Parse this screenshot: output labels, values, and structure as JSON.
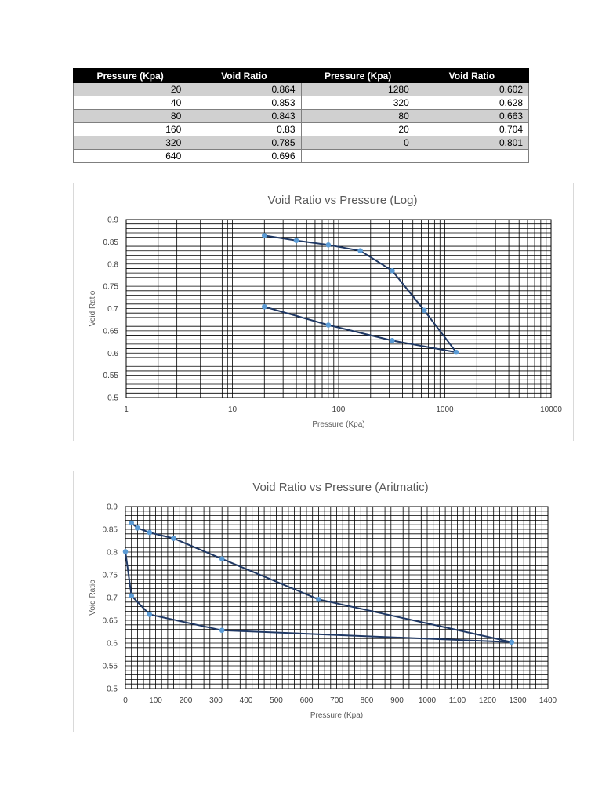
{
  "table": {
    "headers": [
      "Pressure (Kpa)",
      "Void Ratio",
      "Pressure (Kpa)",
      "Void Ratio"
    ],
    "rows": [
      [
        "20",
        "0.864",
        "1280",
        "0.602"
      ],
      [
        "40",
        "0.853",
        "320",
        "0.628"
      ],
      [
        "80",
        "0.843",
        "80",
        "0.663"
      ],
      [
        "160",
        "0.83",
        "20",
        "0.704"
      ],
      [
        "320",
        "0.785",
        "0",
        "0.801"
      ],
      [
        "640",
        "0.696",
        "",
        ""
      ]
    ]
  },
  "colors": {
    "line": "#1f3864",
    "marker": "#5b9bd5",
    "grid": "#000000",
    "table_header_bg": "#000000",
    "table_shade": "#d0d0d0"
  },
  "chart_data": [
    {
      "type": "line",
      "title": "Void Ratio vs Pressure (Log)",
      "xlabel": "Pressure (Kpa)",
      "ylabel": "Void Ratio",
      "x_scale": "log",
      "xlim": [
        1,
        10000
      ],
      "ylim": [
        0.5,
        0.9
      ],
      "x_ticks": [
        1,
        10,
        100,
        1000,
        10000
      ],
      "x_tick_labels": [
        "1",
        "10",
        "100",
        "1000",
        "10000"
      ],
      "y_ticks": [
        0.5,
        0.55,
        0.6,
        0.65,
        0.7,
        0.75,
        0.8,
        0.85,
        0.9
      ],
      "y_tick_labels": [
        "0.5",
        "0.55",
        "0.6",
        "0.65",
        "0.7",
        "0.75",
        "0.8",
        "0.85",
        "0.9"
      ],
      "grid": "major and minor",
      "series": [
        {
          "x": [
            20,
            40,
            80,
            160,
            320,
            640,
            1280,
            320,
            80,
            20
          ],
          "y": [
            0.864,
            0.853,
            0.843,
            0.83,
            0.785,
            0.696,
            0.602,
            0.628,
            0.663,
            0.704
          ]
        }
      ]
    },
    {
      "type": "line",
      "title": "Void Ratio vs Pressure (Aritmatic)",
      "xlabel": "Pressure (Kpa)",
      "ylabel": "Void Ratio",
      "x_scale": "linear",
      "xlim": [
        0,
        1400
      ],
      "ylim": [
        0.5,
        0.9
      ],
      "x_ticks": [
        0,
        100,
        200,
        300,
        400,
        500,
        600,
        700,
        800,
        900,
        1000,
        1100,
        1200,
        1300,
        1400
      ],
      "x_tick_labels": [
        "0",
        "100",
        "200",
        "300",
        "400",
        "500",
        "600",
        "700",
        "800",
        "900",
        "1000",
        "1100",
        "1200",
        "1300",
        "1400"
      ],
      "y_ticks": [
        0.5,
        0.55,
        0.6,
        0.65,
        0.7,
        0.75,
        0.8,
        0.85,
        0.9
      ],
      "y_tick_labels": [
        "0.5",
        "0.55",
        "0.6",
        "0.65",
        "0.7",
        "0.75",
        "0.8",
        "0.85",
        "0.9"
      ],
      "grid": "major and minor",
      "series": [
        {
          "x": [
            20,
            40,
            80,
            160,
            320,
            640,
            1280,
            320,
            80,
            20,
            0
          ],
          "y": [
            0.864,
            0.853,
            0.843,
            0.83,
            0.785,
            0.696,
            0.602,
            0.628,
            0.663,
            0.704,
            0.801
          ]
        }
      ]
    }
  ]
}
